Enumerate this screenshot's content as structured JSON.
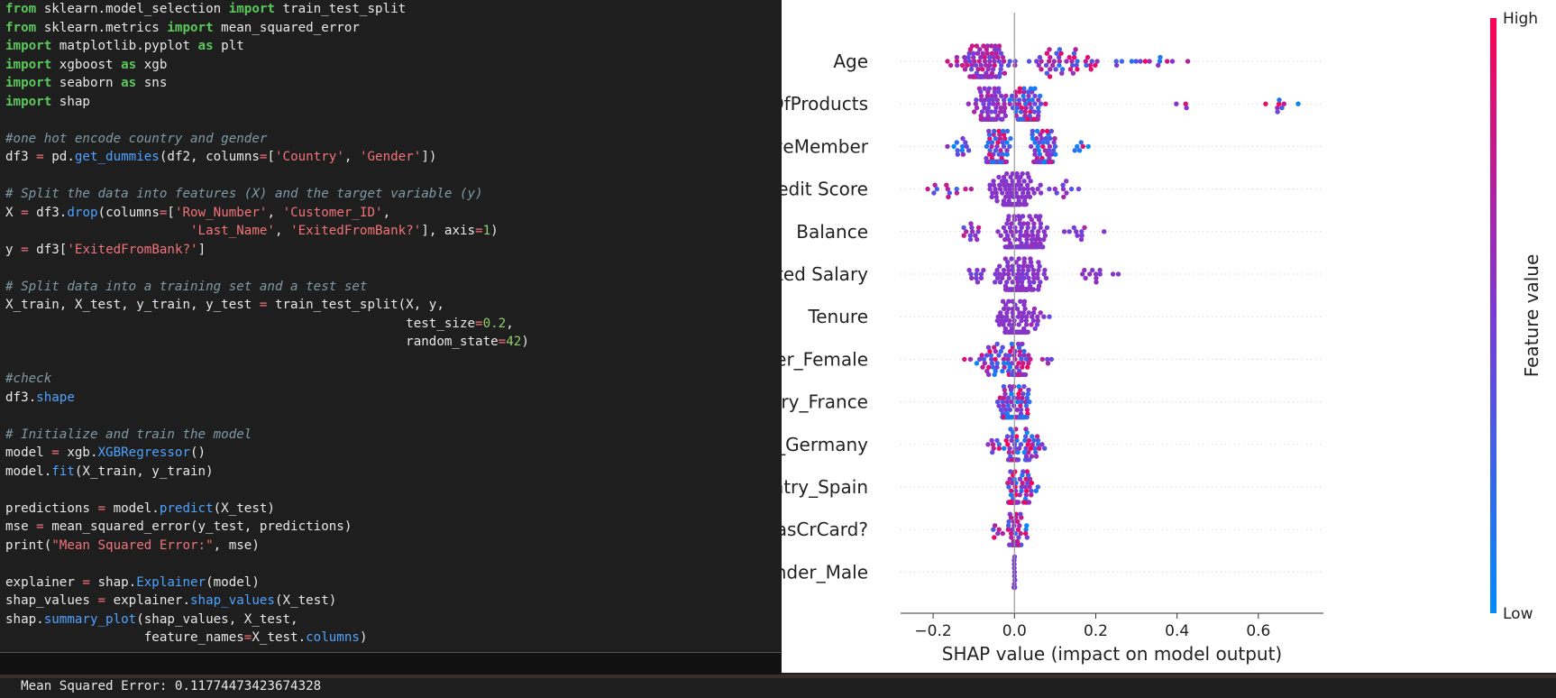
{
  "editor": {
    "code_lines": [
      [
        [
          "kw",
          "from"
        ],
        [
          "p",
          " sklearn.model_selection "
        ],
        [
          "kw",
          "import"
        ],
        [
          "p",
          " train_test_split"
        ]
      ],
      [
        [
          "kw",
          "from"
        ],
        [
          "p",
          " sklearn.metrics "
        ],
        [
          "kw",
          "import"
        ],
        [
          "p",
          " mean_squared_error"
        ]
      ],
      [
        [
          "kw",
          "import"
        ],
        [
          "p",
          " matplotlib.pyplot "
        ],
        [
          "kw",
          "as"
        ],
        [
          "p",
          " plt"
        ]
      ],
      [
        [
          "kw",
          "import"
        ],
        [
          "p",
          " xgboost "
        ],
        [
          "kw",
          "as"
        ],
        [
          "p",
          " xgb"
        ]
      ],
      [
        [
          "kw",
          "import"
        ],
        [
          "p",
          " seaborn "
        ],
        [
          "kw",
          "as"
        ],
        [
          "p",
          " sns"
        ]
      ],
      [
        [
          "kw",
          "import"
        ],
        [
          "p",
          " shap"
        ]
      ],
      [],
      [
        [
          "c",
          "#one hot encode country and gender"
        ]
      ],
      [
        [
          "p",
          "df3 "
        ],
        [
          "op",
          "="
        ],
        [
          "p",
          " pd."
        ],
        [
          "a",
          "get_dummies"
        ],
        [
          "p",
          "(df2, columns"
        ],
        [
          "op",
          "="
        ],
        [
          "p",
          "["
        ],
        [
          "s",
          "'Country'"
        ],
        [
          "p",
          ", "
        ],
        [
          "s",
          "'Gender'"
        ],
        [
          "p",
          "])"
        ]
      ],
      [],
      [
        [
          "c",
          "# Split the data into features (X) and the target variable (y)"
        ]
      ],
      [
        [
          "p",
          "X "
        ],
        [
          "op",
          "="
        ],
        [
          "p",
          " df3."
        ],
        [
          "a",
          "drop"
        ],
        [
          "p",
          "(columns"
        ],
        [
          "op",
          "="
        ],
        [
          "p",
          "["
        ],
        [
          "s",
          "'Row_Number'"
        ],
        [
          "p",
          ", "
        ],
        [
          "s",
          "'Customer_ID'"
        ],
        [
          "p",
          ","
        ]
      ],
      [
        [
          "p",
          "                        "
        ],
        [
          "s",
          "'Last_Name'"
        ],
        [
          "p",
          ", "
        ],
        [
          "s",
          "'ExitedFromBank?'"
        ],
        [
          "p",
          "], axis"
        ],
        [
          "op",
          "="
        ],
        [
          "n",
          "1"
        ],
        [
          "p",
          ")"
        ]
      ],
      [
        [
          "p",
          "y "
        ],
        [
          "op",
          "="
        ],
        [
          "p",
          " df3["
        ],
        [
          "s",
          "'ExitedFromBank?'"
        ],
        [
          "p",
          "]"
        ]
      ],
      [],
      [
        [
          "c",
          "# Split data into a training set and a test set"
        ]
      ],
      [
        [
          "p",
          "X_train, X_test, y_train, y_test "
        ],
        [
          "op",
          "="
        ],
        [
          "p",
          " train_test_split(X, y,"
        ]
      ],
      [
        [
          "p",
          "                                                    test_size"
        ],
        [
          "op",
          "="
        ],
        [
          "n",
          "0.2"
        ],
        [
          "p",
          ","
        ]
      ],
      [
        [
          "p",
          "                                                    random_state"
        ],
        [
          "op",
          "="
        ],
        [
          "n",
          "42"
        ],
        [
          "p",
          ")"
        ]
      ],
      [],
      [
        [
          "c",
          "#check"
        ]
      ],
      [
        [
          "p",
          "df3."
        ],
        [
          "a",
          "shape"
        ]
      ],
      [],
      [
        [
          "c",
          "# Initialize and train the model"
        ]
      ],
      [
        [
          "p",
          "model "
        ],
        [
          "op",
          "="
        ],
        [
          "p",
          " xgb."
        ],
        [
          "a",
          "XGBRegressor"
        ],
        [
          "p",
          "()"
        ]
      ],
      [
        [
          "p",
          "model."
        ],
        [
          "a",
          "fit"
        ],
        [
          "p",
          "(X_train, y_train)"
        ]
      ],
      [],
      [
        [
          "p",
          "predictions "
        ],
        [
          "op",
          "="
        ],
        [
          "p",
          " model."
        ],
        [
          "a",
          "predict"
        ],
        [
          "p",
          "(X_test)"
        ]
      ],
      [
        [
          "p",
          "mse "
        ],
        [
          "op",
          "="
        ],
        [
          "p",
          " mean_squared_error(y_test, predictions)"
        ]
      ],
      [
        [
          "p",
          "print("
        ],
        [
          "s",
          "\"Mean Squared Error:\""
        ],
        [
          "p",
          ", mse)"
        ]
      ],
      [],
      [
        [
          "p",
          "explainer "
        ],
        [
          "op",
          "="
        ],
        [
          "p",
          " shap."
        ],
        [
          "a",
          "Explainer"
        ],
        [
          "p",
          "(model)"
        ]
      ],
      [
        [
          "p",
          "shap_values "
        ],
        [
          "op",
          "="
        ],
        [
          "p",
          " explainer."
        ],
        [
          "a",
          "shap_values"
        ],
        [
          "p",
          "(X_test)"
        ]
      ],
      [
        [
          "p",
          "shap."
        ],
        [
          "a",
          "summary_plot"
        ],
        [
          "p",
          "(shap_values, X_test,"
        ]
      ],
      [
        [
          "p",
          "                  feature_names"
        ],
        [
          "op",
          "="
        ],
        [
          "p",
          "X_test."
        ],
        [
          "a",
          "columns"
        ],
        [
          "p",
          ")"
        ]
      ]
    ],
    "output_text": "Mean Squared Error: 0.11774473423674328"
  },
  "colors": {
    "high": "#ff0052",
    "low": "#008bfb",
    "keyword": "#5ac85a",
    "string": "#f2737a",
    "comment": "#7f9aa6",
    "attribute": "#4fa3ff"
  },
  "chart_data": {
    "type": "scatter",
    "subtype": "shap_beeswarm",
    "xlabel": "SHAP value (impact on model output)",
    "xlim": [
      -0.28,
      0.76
    ],
    "xticks": [
      -0.2,
      0.0,
      0.2,
      0.4,
      0.6
    ],
    "xtick_labels": [
      "−0.2",
      "0.0",
      "0.2",
      "0.4",
      "0.6"
    ],
    "colorbar": {
      "label": "Feature value",
      "high_label": "High",
      "low_label": "Low"
    },
    "features": [
      {
        "name": "Age",
        "clusters": [
          {
            "center": -0.08,
            "spread": 0.06,
            "count": 110,
            "color_low": 0.85,
            "color_high": 0.35
          },
          {
            "center": 0.12,
            "spread": 0.08,
            "count": 45,
            "color_low": 0.15,
            "color_high": 0.95
          },
          {
            "center": 0.34,
            "spread": 0.08,
            "count": 14,
            "color_low": 0.0,
            "color_high": 1.0
          }
        ]
      },
      {
        "name": "NumOfProducts",
        "clusters": [
          {
            "center": -0.06,
            "spread": 0.035,
            "count": 80,
            "color_low": 0.45,
            "color_high": 0.7
          },
          {
            "center": 0.03,
            "spread": 0.035,
            "count": 90,
            "color_low": 0.98,
            "color_high": 0.05
          },
          {
            "center": 0.42,
            "spread": 0.03,
            "count": 3,
            "color_low": 0.0,
            "color_high": 1.0
          },
          {
            "center": 0.64,
            "spread": 0.05,
            "count": 8,
            "color_low": 0.0,
            "color_high": 1.0
          }
        ]
      },
      {
        "name": "IsActiveMember",
        "clusters": [
          {
            "center": -0.04,
            "spread": 0.03,
            "count": 80,
            "color_low": 0.0,
            "color_high": 1.0
          },
          {
            "center": -0.13,
            "spread": 0.03,
            "count": 12,
            "color_low": 0.0,
            "color_high": 1.0
          },
          {
            "center": 0.07,
            "spread": 0.03,
            "count": 85,
            "color_low": 1.0,
            "color_high": 0.0
          },
          {
            "center": 0.16,
            "spread": 0.02,
            "count": 6,
            "color_low": 1.0,
            "color_high": 0.0
          }
        ]
      },
      {
        "name": "Credit Score",
        "clusters": [
          {
            "center": 0.0,
            "spread": 0.05,
            "count": 110,
            "color_low": 0.55,
            "color_high": 0.55
          },
          {
            "center": -0.15,
            "spread": 0.05,
            "count": 12,
            "color_low": 0.2,
            "color_high": 0.85
          },
          {
            "center": 0.12,
            "spread": 0.04,
            "count": 10,
            "color_low": 0.7,
            "color_high": 0.35
          }
        ]
      },
      {
        "name": "Balance",
        "clusters": [
          {
            "center": 0.02,
            "spread": 0.055,
            "count": 140,
            "color_low": 0.6,
            "color_high": 0.5
          },
          {
            "center": -0.1,
            "spread": 0.03,
            "count": 12,
            "color_low": 0.3,
            "color_high": 0.8
          },
          {
            "center": 0.17,
            "spread": 0.05,
            "count": 10,
            "color_low": 0.4,
            "color_high": 0.7
          }
        ]
      },
      {
        "name": "Estimated Salary",
        "clusters": [
          {
            "center": 0.01,
            "spread": 0.055,
            "count": 140,
            "color_low": 0.6,
            "color_high": 0.5
          },
          {
            "center": -0.09,
            "spread": 0.03,
            "count": 10,
            "color_low": 0.4,
            "color_high": 0.7
          },
          {
            "center": 0.19,
            "spread": 0.05,
            "count": 12,
            "color_low": 0.5,
            "color_high": 0.6
          }
        ]
      },
      {
        "name": "Tenure",
        "clusters": [
          {
            "center": 0.0,
            "spread": 0.04,
            "count": 100,
            "color_low": 0.55,
            "color_high": 0.55
          },
          {
            "center": 0.06,
            "spread": 0.025,
            "count": 10,
            "color_low": 0.7,
            "color_high": 0.3
          }
        ]
      },
      {
        "name": "Gender_Female",
        "clusters": [
          {
            "center": 0.01,
            "spread": 0.025,
            "count": 60,
            "color_low": 0.05,
            "color_high": 0.98
          },
          {
            "center": -0.05,
            "spread": 0.04,
            "count": 30,
            "color_low": 0.98,
            "color_high": 0.05
          },
          {
            "center": -0.11,
            "spread": 0.02,
            "count": 3,
            "color_low": 1.0,
            "color_high": 0.0
          },
          {
            "center": 0.08,
            "spread": 0.02,
            "count": 4,
            "color_low": 0.0,
            "color_high": 1.0
          }
        ]
      },
      {
        "name": "Country_France",
        "clusters": [
          {
            "center": -0.02,
            "spread": 0.025,
            "count": 40,
            "color_low": 0.0,
            "color_high": 1.0
          },
          {
            "center": 0.02,
            "spread": 0.02,
            "count": 45,
            "color_low": 1.0,
            "color_high": 0.0
          }
        ]
      },
      {
        "name": "Country_Germany",
        "clusters": [
          {
            "center": -0.005,
            "spread": 0.015,
            "count": 80,
            "color_low": 1.0,
            "color_high": 0.0
          },
          {
            "center": 0.04,
            "spread": 0.03,
            "count": 30,
            "color_low": 0.0,
            "color_high": 1.0
          },
          {
            "center": -0.05,
            "spread": 0.02,
            "count": 8,
            "color_low": 1.0,
            "color_high": 0.0
          }
        ]
      },
      {
        "name": "Country_Spain",
        "clusters": [
          {
            "center": -0.005,
            "spread": 0.012,
            "count": 60,
            "color_low": 1.0,
            "color_high": 0.0
          },
          {
            "center": 0.03,
            "spread": 0.025,
            "count": 30,
            "color_low": 0.0,
            "color_high": 1.0
          }
        ]
      },
      {
        "name": "HasCrCard?",
        "clusters": [
          {
            "center": 0.0,
            "spread": 0.015,
            "count": 60,
            "color_low": 0.2,
            "color_high": 0.85
          },
          {
            "center": -0.04,
            "spread": 0.02,
            "count": 6,
            "color_low": 1.0,
            "color_high": 0.0
          },
          {
            "center": 0.03,
            "spread": 0.01,
            "count": 4,
            "color_low": 1.0,
            "color_high": 0.0
          }
        ]
      },
      {
        "name": "Gender_Male",
        "clusters": [
          {
            "center": 0.0,
            "spread": 0.001,
            "count": 24,
            "color_low": 0.5,
            "color_high": 0.5
          }
        ]
      }
    ]
  }
}
